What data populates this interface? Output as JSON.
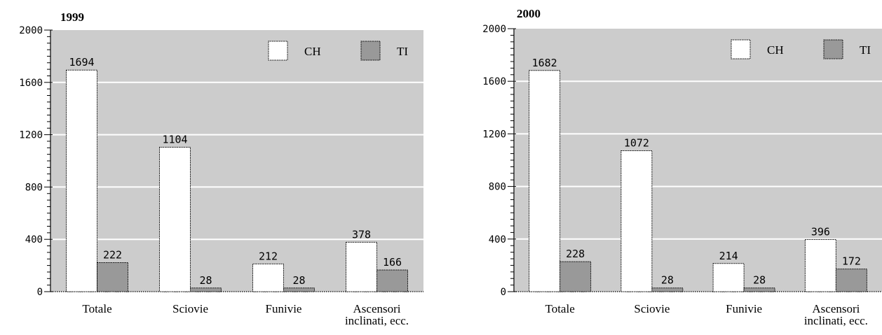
{
  "colors": {
    "plot_background": "#cccccc",
    "gridline": "#ffffff",
    "series_ch": "#ffffff",
    "series_ti": "#999999",
    "bar_outline": "#000000"
  },
  "chart_data": [
    {
      "type": "bar",
      "title": "1999",
      "categories": [
        [
          "Totale"
        ],
        [
          "Sciovie"
        ],
        [
          "Funivie"
        ],
        [
          "Ascensori",
          "inclinati, ecc."
        ]
      ],
      "series": [
        {
          "name": "CH",
          "values": [
            1694,
            1104,
            212,
            378
          ]
        },
        {
          "name": "TI",
          "values": [
            222,
            28,
            28,
            166
          ]
        }
      ],
      "ylim": [
        0,
        2000
      ],
      "yticks": [
        0,
        400,
        800,
        1200,
        1600,
        2000
      ],
      "xlabel": "",
      "ylabel": "",
      "grid": true,
      "legend": "top-right"
    },
    {
      "type": "bar",
      "title": "2000",
      "categories": [
        [
          "Totale"
        ],
        [
          "Sciovie"
        ],
        [
          "Funivie"
        ],
        [
          "Ascensori",
          "inclinati, ecc."
        ]
      ],
      "series": [
        {
          "name": "CH",
          "values": [
            1682,
            1072,
            214,
            396
          ]
        },
        {
          "name": "TI",
          "values": [
            228,
            28,
            28,
            172
          ]
        }
      ],
      "ylim": [
        0,
        2000
      ],
      "yticks": [
        0,
        400,
        800,
        1200,
        1600,
        2000
      ],
      "xlabel": "",
      "ylabel": "",
      "grid": true,
      "legend": "top-right"
    }
  ]
}
